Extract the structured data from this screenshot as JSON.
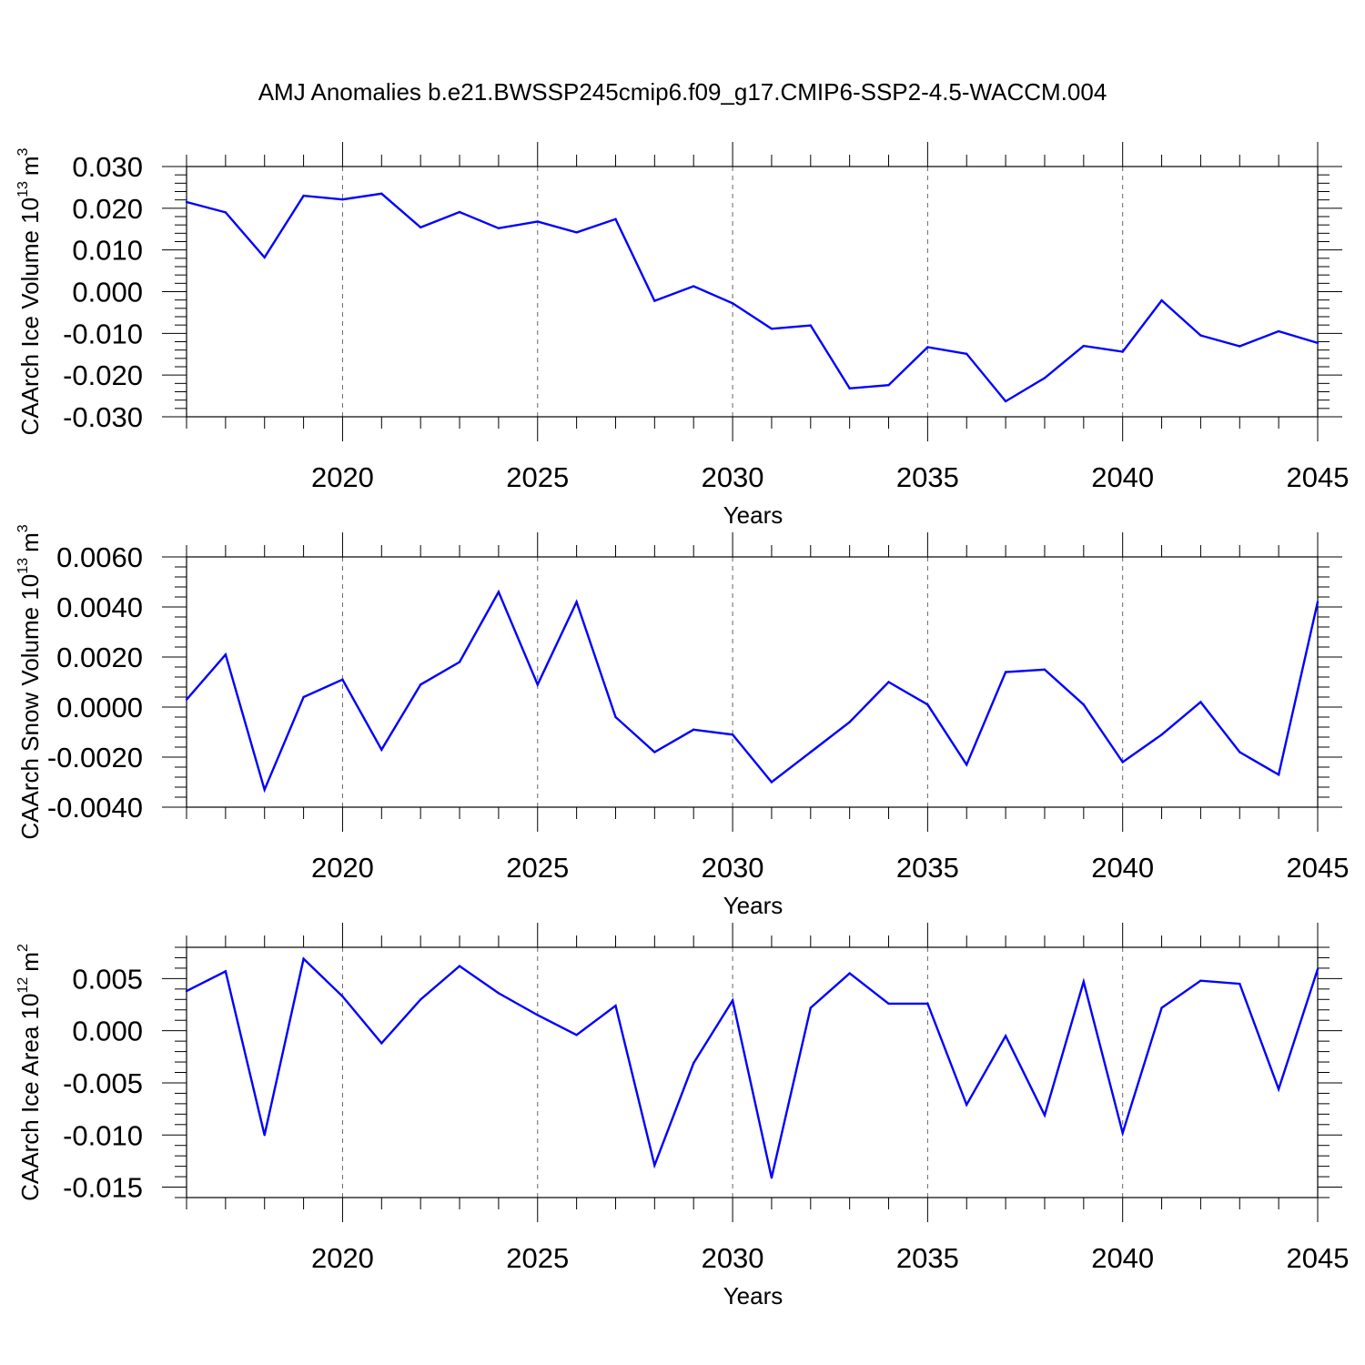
{
  "title": "AMJ Anomalies b.e21.BWSSP245cmip6.f09_g17.CMIP6-SSP2-4.5-WACCM.004",
  "chart_data": [
    {
      "type": "line",
      "ylabel": "CAArch Ice Volume 10",
      "ylabel_exp": "13",
      "ylabel_unit": "m",
      "ylabel_unit_exp": "3",
      "xlabel": "Years",
      "xlim": [
        2016,
        2045
      ],
      "ylim": [
        -0.03,
        0.03
      ],
      "yticks": [
        -0.03,
        -0.02,
        -0.01,
        0.0,
        0.01,
        0.02,
        0.03
      ],
      "ytick_labels": [
        "-0.030",
        "-0.020",
        "-0.010",
        "0.000",
        "0.010",
        "0.020",
        "0.030"
      ],
      "xticks": [
        2020,
        2025,
        2030,
        2035,
        2040,
        2045
      ],
      "xtick_labels": [
        "2020",
        "2025",
        "2030",
        "2035",
        "2040",
        "2045"
      ],
      "line_color": "#0000ff",
      "x": [
        2016,
        2017,
        2018,
        2019,
        2020,
        2021,
        2022,
        2023,
        2024,
        2025,
        2026,
        2027,
        2028,
        2029,
        2030,
        2031,
        2032,
        2033,
        2034,
        2035,
        2036,
        2037,
        2038,
        2039,
        2040,
        2041,
        2042,
        2043,
        2044,
        2045
      ],
      "values": [
        0.0215,
        0.019,
        0.0082,
        0.023,
        0.0221,
        0.0235,
        0.0154,
        0.0191,
        0.0152,
        0.0168,
        0.0142,
        0.0174,
        -0.0022,
        0.0013,
        -0.0028,
        -0.0089,
        -0.0081,
        -0.0232,
        -0.0224,
        -0.0133,
        -0.0149,
        -0.0263,
        -0.0207,
        -0.013,
        -0.0144,
        -0.0021,
        -0.0105,
        -0.0131,
        -0.0095,
        -0.0123
      ]
    },
    {
      "type": "line",
      "ylabel": "CAArch Snow Volume 10",
      "ylabel_exp": "13",
      "ylabel_unit": "m",
      "ylabel_unit_exp": "3",
      "xlabel": "Years",
      "xlim": [
        2016,
        2045
      ],
      "ylim": [
        -0.004,
        0.006
      ],
      "yticks": [
        -0.004,
        -0.002,
        0.0,
        0.002,
        0.004,
        0.006
      ],
      "ytick_labels": [
        "-0.0040",
        "-0.0020",
        "0.0000",
        "0.0020",
        "0.0040",
        "0.0060"
      ],
      "xticks": [
        2020,
        2025,
        2030,
        2035,
        2040,
        2045
      ],
      "xtick_labels": [
        "2020",
        "2025",
        "2030",
        "2035",
        "2040",
        "2045"
      ],
      "line_color": "#0000ff",
      "x": [
        2016,
        2017,
        2018,
        2019,
        2020,
        2021,
        2022,
        2023,
        2024,
        2025,
        2026,
        2027,
        2028,
        2029,
        2030,
        2031,
        2032,
        2033,
        2034,
        2035,
        2036,
        2037,
        2038,
        2039,
        2040,
        2041,
        2042,
        2043,
        2044,
        2045
      ],
      "values": [
        0.0003,
        0.0021,
        -0.0033,
        0.0004,
        0.0011,
        -0.0017,
        0.0009,
        0.0018,
        0.0046,
        0.0009,
        0.0042,
        -0.0004,
        -0.0018,
        -0.0009,
        -0.0011,
        -0.003,
        -0.0018,
        -0.0006,
        0.001,
        0.0001,
        -0.0023,
        0.0014,
        0.0015,
        0.0001,
        -0.0022,
        -0.0011,
        0.0002,
        -0.0018,
        -0.0027,
        0.0042
      ]
    },
    {
      "type": "line",
      "ylabel": "CAArch Ice Area 10",
      "ylabel_exp": "12",
      "ylabel_unit": "m",
      "ylabel_unit_exp": "2",
      "xlabel": "Years",
      "xlim": [
        2016,
        2045
      ],
      "ylim": [
        -0.016,
        0.008
      ],
      "yticks": [
        -0.015,
        -0.01,
        -0.005,
        0.0,
        0.005
      ],
      "ytick_labels": [
        "-0.015",
        "-0.010",
        "-0.005",
        "0.000",
        "0.005"
      ],
      "xticks": [
        2020,
        2025,
        2030,
        2035,
        2040,
        2045
      ],
      "xtick_labels": [
        "2020",
        "2025",
        "2030",
        "2035",
        "2040",
        "2045"
      ],
      "line_color": "#0000ff",
      "x": [
        2016,
        2017,
        2018,
        2019,
        2020,
        2021,
        2022,
        2023,
        2024,
        2025,
        2026,
        2027,
        2028,
        2029,
        2030,
        2031,
        2032,
        2033,
        2034,
        2035,
        2036,
        2037,
        2038,
        2039,
        2040,
        2041,
        2042,
        2043,
        2044,
        2045
      ],
      "values": [
        0.0038,
        0.0057,
        -0.01,
        0.0069,
        0.0033,
        -0.0012,
        0.003,
        0.0062,
        0.0036,
        0.0015,
        -0.0004,
        0.0024,
        -0.0129,
        -0.0031,
        0.0029,
        -0.0141,
        0.0022,
        0.0055,
        0.0026,
        0.0026,
        -0.0071,
        -0.0005,
        -0.0081,
        0.0047,
        -0.0098,
        0.0022,
        0.0048,
        0.0045,
        -0.0056,
        0.0059
      ]
    }
  ]
}
